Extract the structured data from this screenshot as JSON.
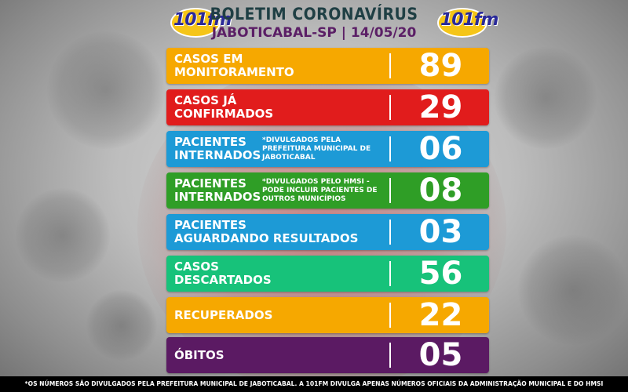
{
  "header": {
    "title": "BOLETIM CORONAVÍRUS",
    "subtitle": "JABOTICABAL-SP | 14/05/20",
    "logo_text": "101fm"
  },
  "rows": [
    {
      "label_line1": "CASOS EM",
      "label_line2": "MONITORAMENTO",
      "note": "",
      "value": "89",
      "color": "#f6a800"
    },
    {
      "label_line1": "CASOS JÁ",
      "label_line2": "CONFIRMADOS",
      "note": "",
      "value": "29",
      "color": "#e11c1c"
    },
    {
      "label_line1": "PACIENTES",
      "label_line2": "INTERNADOS",
      "note": "*DIVULGADOS PELA PREFEITURA MUNICIPAL DE JABOTICABAL",
      "value": "06",
      "color": "#1d9ad6"
    },
    {
      "label_line1": "PACIENTES",
      "label_line2": "INTERNADOS",
      "note": "*DIVULGADOS PELO HMSI - PODE INCLUIR PACIENTES DE OUTROS MUNICÍPIOS",
      "value": "08",
      "color": "#2f9e26"
    },
    {
      "label_line1": "PACIENTES",
      "label_line2": "AGUARDANDO RESULTADOS",
      "note": "",
      "value": "03",
      "color": "#1d9ad6"
    },
    {
      "label_line1": "CASOS",
      "label_line2": "DESCARTADOS",
      "note": "",
      "value": "56",
      "color": "#17c27a"
    },
    {
      "label_line1": "RECUPERADOS",
      "label_line2": "",
      "note": "",
      "value": "22",
      "color": "#f6a800"
    },
    {
      "label_line1": "ÓBITOS",
      "label_line2": "",
      "note": "",
      "value": "05",
      "color": "#5b1a63"
    }
  ],
  "footer": {
    "text": "*OS NÚMEROS SÃO DIVULGADOS PELA PREFEITURA MUNICIPAL DE JABOTICABAL. A 101FM DIVULGA APENAS NÚMEROS OFICIAIS DA ADMINISTRAÇÃO MUNICIPAL E DO HMSI"
  }
}
